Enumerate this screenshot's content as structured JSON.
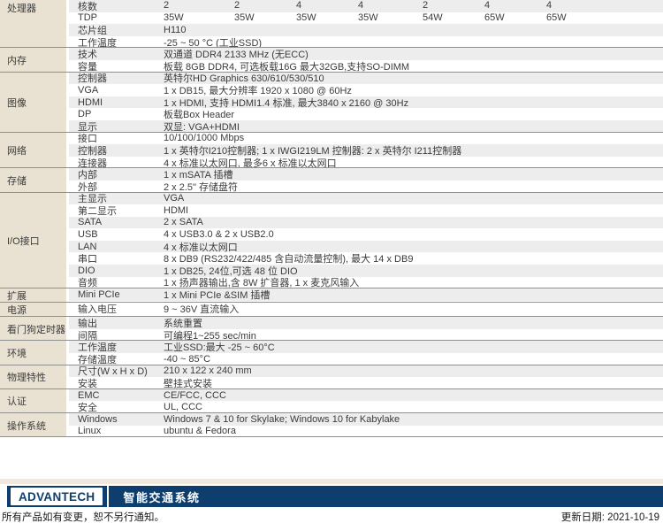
{
  "spec_table": {
    "sections": [
      {
        "category": "处理器",
        "rows": [
          {
            "label": "核数",
            "cells": [
              "2",
              "2",
              "4",
              "4",
              "2",
              "4",
              "4"
            ]
          },
          {
            "label": "TDP",
            "cells": [
              "35W",
              "35W",
              "35W",
              "35W",
              "54W",
              "65W",
              "65W"
            ]
          },
          {
            "label": "芯片组",
            "value": "H110"
          },
          {
            "label": "工作温度",
            "value": "-25 ~ 50 °C (工业SSD)"
          }
        ]
      },
      {
        "category": "内存",
        "rows": [
          {
            "label": "技术",
            "value": "双通道 DDR4 2133 MHz (无ECC)"
          },
          {
            "label": "容量",
            "value": "板载 8GB DDR4, 可选板载16G 最大32GB,支持SO-DIMM"
          }
        ]
      },
      {
        "category": "图像",
        "rows": [
          {
            "label": "控制器",
            "value": "英特尔HD Graphics 630/610/530/510"
          },
          {
            "label": "VGA",
            "value": "1 x DB15, 最大分辨率 1920 x 1080 @ 60Hz"
          },
          {
            "label": "HDMI",
            "value": "1 x HDMI, 支持 HDMI1.4 标准, 最大3840 x 2160 @ 30Hz"
          },
          {
            "label": "DP",
            "value": "板载Box Header"
          },
          {
            "label": "显示",
            "value": "双显: VGA+HDMI"
          }
        ]
      },
      {
        "category": "网络",
        "rows": [
          {
            "label": "接口",
            "value": "10/100/1000 Mbps"
          },
          {
            "label": "控制器",
            "value": "1 x 英特尔I210控制器; 1 x IWGI219LM 控制器: 2 x 英特尔 I211控制器"
          },
          {
            "label": "连接器",
            "value": "4 x 标准以太网口, 最多6 x 标准以太网口"
          }
        ]
      },
      {
        "category": "存储",
        "rows": [
          {
            "label": "内部",
            "value": "1 x mSATA 插槽"
          },
          {
            "label": "外部",
            "value": "2 x 2.5\" 存储盘符"
          }
        ]
      },
      {
        "category": "I/O接口",
        "rows": [
          {
            "label": "主显示",
            "value": "VGA"
          },
          {
            "label": "第二显示",
            "value": "HDMI"
          },
          {
            "label": "SATA",
            "value": "2 x SATA"
          },
          {
            "label": "USB",
            "value": "4 x USB3.0 & 2 x USB2.0"
          },
          {
            "label": "LAN",
            "value": "4 x 标准以太网口"
          },
          {
            "label": "串口",
            "value": "8 x DB9 (RS232/422/485 含自动流量控制), 最大 14 x DB9"
          },
          {
            "label": "DIO",
            "value": "1 x DB25, 24位,可选 48 位 DIO"
          },
          {
            "label": "音频",
            "value": "1 x 扬声器输出,含 8W 扩音器, 1 x 麦克风输入"
          }
        ]
      },
      {
        "category": "扩展",
        "rows": [
          {
            "label": "Mini PCIe",
            "value": "1 x Mini PCIe &SIM 插槽"
          }
        ]
      },
      {
        "category": "电源",
        "rows": [
          {
            "label": "输入电压",
            "value": "9 ~ 36V 直流输入"
          }
        ]
      },
      {
        "category": "看门狗定时器",
        "rows": [
          {
            "label": "输出",
            "value": "系统重置"
          },
          {
            "label": "间隔",
            "value": "可编程1~255 sec/min"
          }
        ]
      },
      {
        "category": "环境",
        "rows": [
          {
            "label": "工作温度",
            "value": "工业SSD:最大 -25 ~ 60°C"
          },
          {
            "label": "存储温度",
            "value": "-40 ~ 85°C"
          }
        ]
      },
      {
        "category": "物理特性",
        "rows": [
          {
            "label": "尺寸(W x H x D)",
            "value": "210 x 122 x 240 mm"
          },
          {
            "label": "安装",
            "value": "壁挂式安装"
          }
        ]
      },
      {
        "category": "认证",
        "rows": [
          {
            "label": "EMC",
            "value": "CE/FCC, CCC"
          },
          {
            "label": "安全",
            "value": "UL, CCC"
          }
        ]
      },
      {
        "category": "操作系统",
        "rows": [
          {
            "label": "Windows",
            "value": "Windows 7 & 10 for Skylake; Windows 10 for Kabylake"
          },
          {
            "label": "Linux",
            "value": "ubuntu & Fedora"
          }
        ]
      }
    ]
  },
  "footer": {
    "logo_text": "ADVANTECH",
    "series_title": "智能交通系统",
    "disclaimer": "所有产品如有变更，恕不另行通知。",
    "update_date": "更新日期: 2021-10-19"
  },
  "colors": {
    "category_bg": "#e9e2d2",
    "row_stripe": "#ededed",
    "section_line": "#8f8f8f",
    "text": "#3b3b3b",
    "brand_navy": "#0e3e6e",
    "footer_title_color": "#ffffff",
    "pre_footer_band": "#f0e8dc"
  }
}
